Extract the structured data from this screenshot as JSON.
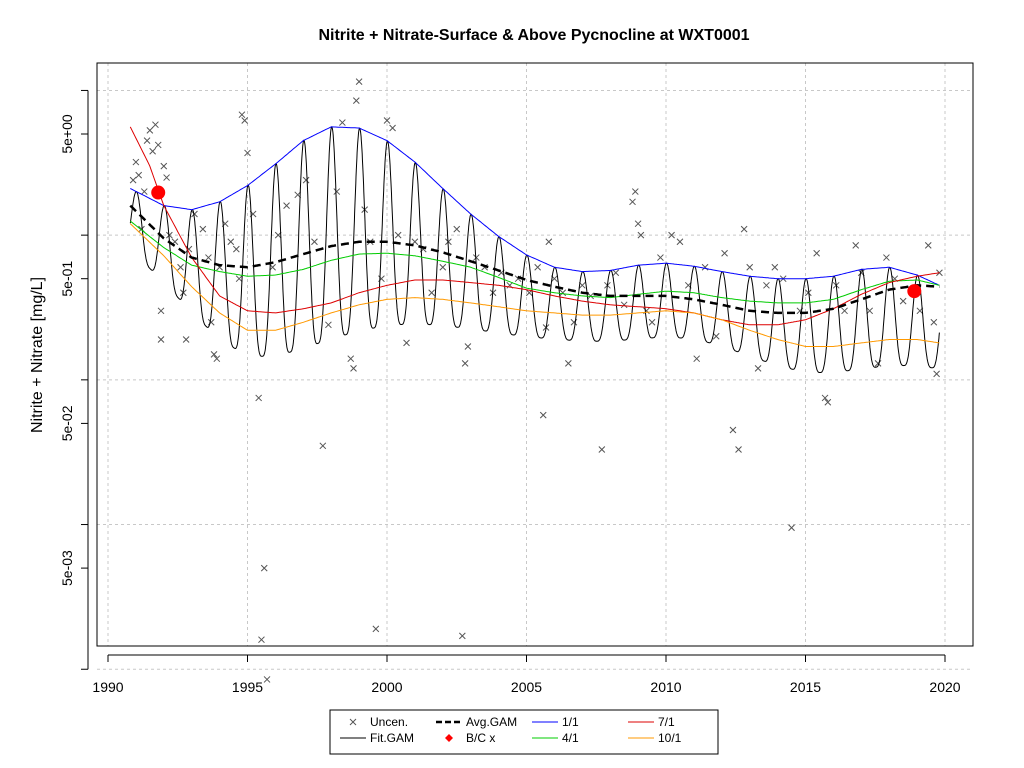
{
  "chart_data": {
    "type": "scatter",
    "title": "Nitrite + Nitrate-Surface & Above Pycnocline at WXT0001",
    "xlabel": "",
    "ylabel": "Nitrite + Nitrate [mg/L]",
    "y_scale": "log",
    "xlim": [
      1990,
      2020
    ],
    "ylim": [
      0.0005,
      20
    ],
    "x_ticks": [
      "1990",
      "1995",
      "2000",
      "2005",
      "2010",
      "2015",
      "2020"
    ],
    "y_ticks": [
      "5e-03",
      "5e-02",
      "5e-01",
      "5e+00"
    ],
    "grid": true,
    "legend_position": "bottom-center",
    "legend": [
      {
        "label": "Uncen.",
        "symbol": "x",
        "color": "#555555"
      },
      {
        "label": "Fit.GAM",
        "symbol": "line",
        "color": "#000000"
      },
      {
        "label": "Avg.GAM",
        "symbol": "dashed-line",
        "color": "#000000"
      },
      {
        "label": "B/C x",
        "symbol": "diamond",
        "color": "#ff0000"
      },
      {
        "label": "1/1",
        "symbol": "line",
        "color": "#0000ff"
      },
      {
        "label": "4/1",
        "symbol": "line",
        "color": "#00cc00"
      },
      {
        "label": "7/1",
        "symbol": "line",
        "color": "#dd0000"
      },
      {
        "label": "10/1",
        "symbol": "line",
        "color": "#ff9900"
      }
    ],
    "baseline_compare_points": [
      {
        "x": 1991.8,
        "y": 1.97
      },
      {
        "x": 2018.9,
        "y": 0.41
      }
    ],
    "seasonal_curves": [
      {
        "name": "1/1",
        "color": "#0000ff",
        "x": [
          1990.8,
          1992,
          1993,
          1994,
          1995,
          1996,
          1997,
          1998,
          1999,
          2000,
          2001,
          2002,
          2003,
          2004,
          2005,
          2006,
          2007,
          2008,
          2009,
          2010,
          2011,
          2012,
          2013,
          2014,
          2015,
          2016,
          2017,
          2018,
          2019,
          2019.8
        ],
        "y": [
          2.1,
          1.6,
          1.5,
          1.7,
          2.2,
          3.1,
          4.5,
          5.6,
          5.5,
          4.5,
          3.2,
          2.1,
          1.4,
          0.98,
          0.73,
          0.6,
          0.56,
          0.57,
          0.62,
          0.64,
          0.61,
          0.56,
          0.52,
          0.5,
          0.5,
          0.52,
          0.58,
          0.6,
          0.53,
          0.45
        ]
      },
      {
        "name": "4/1",
        "color": "#00cc00",
        "x": [
          1990.8,
          1992,
          1993,
          1994,
          1995,
          1996,
          1997,
          1998,
          1999,
          2000,
          2001,
          2002,
          2003,
          2004,
          2005,
          2006,
          2007,
          2008,
          2009,
          2010,
          2011,
          2012,
          2013,
          2014,
          2015,
          2016,
          2017,
          2018,
          2019,
          2019.8
        ],
        "y": [
          1.25,
          0.82,
          0.62,
          0.56,
          0.52,
          0.53,
          0.58,
          0.67,
          0.74,
          0.75,
          0.72,
          0.66,
          0.6,
          0.51,
          0.43,
          0.4,
          0.38,
          0.37,
          0.39,
          0.41,
          0.4,
          0.37,
          0.35,
          0.34,
          0.34,
          0.36,
          0.42,
          0.48,
          0.49,
          0.45
        ]
      },
      {
        "name": "7/1",
        "color": "#dd0000",
        "x": [
          1990.8,
          1991.5,
          1992,
          1993,
          1994,
          1995,
          1996,
          1997,
          1998,
          1999,
          2000,
          2001,
          2002,
          2003,
          2004,
          2005,
          2006,
          2007,
          2008,
          2009,
          2010,
          2011,
          2012,
          2013,
          2014,
          2015,
          2016,
          2017,
          2018,
          2019,
          2019.8
        ],
        "y": [
          5.6,
          3.0,
          1.6,
          0.7,
          0.38,
          0.3,
          0.29,
          0.31,
          0.34,
          0.4,
          0.45,
          0.49,
          0.49,
          0.47,
          0.45,
          0.42,
          0.38,
          0.35,
          0.33,
          0.32,
          0.31,
          0.29,
          0.26,
          0.24,
          0.24,
          0.26,
          0.31,
          0.39,
          0.47,
          0.52,
          0.55
        ]
      },
      {
        "name": "10/1",
        "color": "#ff9900",
        "x": [
          1990.8,
          1992,
          1993,
          1994,
          1995,
          1996,
          1997,
          1998,
          1999,
          2000,
          2001,
          2002,
          2003,
          2004,
          2005,
          2006,
          2007,
          2008,
          2009,
          2010,
          2011,
          2012,
          2013,
          2014,
          2015,
          2016,
          2017,
          2018,
          2019,
          2019.8
        ],
        "y": [
          1.2,
          0.72,
          0.44,
          0.29,
          0.22,
          0.22,
          0.25,
          0.29,
          0.33,
          0.36,
          0.37,
          0.36,
          0.34,
          0.32,
          0.3,
          0.29,
          0.28,
          0.28,
          0.29,
          0.3,
          0.29,
          0.26,
          0.22,
          0.19,
          0.17,
          0.17,
          0.18,
          0.19,
          0.19,
          0.18
        ]
      }
    ],
    "avg_gam": {
      "name": "Avg.GAM",
      "color": "#000000",
      "x": [
        1990.8,
        1992,
        1993,
        1994,
        1995,
        1996,
        1997,
        1998,
        1999,
        2000,
        2001,
        2002,
        2003,
        2004,
        2005,
        2006,
        2007,
        2008,
        2009,
        2010,
        2011,
        2012,
        2013,
        2014,
        2015,
        2016,
        2017,
        2018,
        2019,
        2019.8
      ],
      "y": [
        1.6,
        0.95,
        0.7,
        0.62,
        0.6,
        0.65,
        0.74,
        0.84,
        0.9,
        0.9,
        0.85,
        0.76,
        0.66,
        0.57,
        0.49,
        0.44,
        0.4,
        0.38,
        0.38,
        0.38,
        0.36,
        0.33,
        0.3,
        0.29,
        0.29,
        0.31,
        0.36,
        0.42,
        0.45,
        0.44
      ]
    },
    "fit_gam_seasonal": {
      "name": "Fit.GAM",
      "color": "#000000",
      "start_year": 1990.8,
      "end_year": 2019.8,
      "description_amplitude_log10": 0.52
    },
    "observations": {
      "name": "Uncen.",
      "color": "#555555",
      "points": [
        [
          1990.9,
          2.4
        ],
        [
          1991.0,
          3.2
        ],
        [
          1991.1,
          2.6
        ],
        [
          1991.2,
          1.1
        ],
        [
          1991.3,
          2.0
        ],
        [
          1991.4,
          4.5
        ],
        [
          1991.5,
          5.3
        ],
        [
          1991.6,
          3.8
        ],
        [
          1991.7,
          5.8
        ],
        [
          1991.8,
          4.2
        ],
        [
          1991.9,
          0.19
        ],
        [
          1991.9,
          0.3
        ],
        [
          1992.0,
          3.0
        ],
        [
          1992.1,
          2.5
        ],
        [
          1992.2,
          1.0
        ],
        [
          1992.4,
          0.9
        ],
        [
          1992.6,
          0.6
        ],
        [
          1992.7,
          0.4
        ],
        [
          1992.8,
          0.19
        ],
        [
          1992.9,
          0.8
        ],
        [
          1993.1,
          1.4
        ],
        [
          1993.4,
          1.1
        ],
        [
          1993.6,
          0.7
        ],
        [
          1993.7,
          0.25
        ],
        [
          1993.8,
          0.15
        ],
        [
          1993.9,
          0.14
        ],
        [
          1994.0,
          0.6
        ],
        [
          1994.2,
          1.2
        ],
        [
          1994.4,
          0.9
        ],
        [
          1994.6,
          0.8
        ],
        [
          1994.7,
          0.5
        ],
        [
          1994.8,
          6.8
        ],
        [
          1994.9,
          6.2
        ],
        [
          1995.0,
          3.7
        ],
        [
          1995.2,
          1.4
        ],
        [
          1995.4,
          0.075
        ],
        [
          1995.5,
          0.0016
        ],
        [
          1995.6,
          0.005
        ],
        [
          1995.7,
          0.00085
        ],
        [
          1995.9,
          0.6
        ],
        [
          1996.1,
          1.0
        ],
        [
          1996.4,
          1.6
        ],
        [
          1996.8,
          1.9
        ],
        [
          1997.1,
          2.4
        ],
        [
          1997.4,
          0.9
        ],
        [
          1997.7,
          0.035
        ],
        [
          1997.9,
          0.24
        ],
        [
          1998.2,
          2.0
        ],
        [
          1998.4,
          6.0
        ],
        [
          1998.7,
          0.14
        ],
        [
          1998.8,
          0.12
        ],
        [
          1998.9,
          8.5
        ],
        [
          1999.0,
          11.5
        ],
        [
          1999.2,
          1.5
        ],
        [
          1999.4,
          0.9
        ],
        [
          1999.6,
          0.0019
        ],
        [
          1999.8,
          0.5
        ],
        [
          2000.0,
          6.2
        ],
        [
          2000.2,
          5.5
        ],
        [
          2000.4,
          1.0
        ],
        [
          2000.7,
          0.18
        ],
        [
          2001.0,
          0.9
        ],
        [
          2001.3,
          0.8
        ],
        [
          2001.6,
          0.4
        ],
        [
          2002.0,
          0.6
        ],
        [
          2002.2,
          0.9
        ],
        [
          2002.5,
          1.1
        ],
        [
          2002.7,
          0.0017
        ],
        [
          2002.8,
          0.13
        ],
        [
          2002.9,
          0.17
        ],
        [
          2003.2,
          0.7
        ],
        [
          2003.5,
          0.6
        ],
        [
          2003.8,
          0.4
        ],
        [
          2004.1,
          0.55
        ],
        [
          2004.4,
          0.45
        ],
        [
          2004.7,
          0.5
        ],
        [
          2005.1,
          0.4
        ],
        [
          2005.4,
          0.6
        ],
        [
          2005.6,
          0.057
        ],
        [
          2005.7,
          0.23
        ],
        [
          2005.8,
          0.9
        ],
        [
          2006.0,
          0.5
        ],
        [
          2006.3,
          0.4
        ],
        [
          2006.5,
          0.13
        ],
        [
          2006.7,
          0.25
        ],
        [
          2007.0,
          0.45
        ],
        [
          2007.3,
          0.38
        ],
        [
          2007.7,
          0.033
        ],
        [
          2007.9,
          0.45
        ],
        [
          2008.2,
          0.55
        ],
        [
          2008.5,
          0.33
        ],
        [
          2008.8,
          1.7
        ],
        [
          2008.9,
          2.0
        ],
        [
          2009.0,
          1.2
        ],
        [
          2009.1,
          1.0
        ],
        [
          2009.3,
          0.3
        ],
        [
          2009.5,
          0.25
        ],
        [
          2009.8,
          0.7
        ],
        [
          2010.2,
          1.0
        ],
        [
          2010.5,
          0.9
        ],
        [
          2010.8,
          0.45
        ],
        [
          2011.1,
          0.14
        ],
        [
          2011.4,
          0.6
        ],
        [
          2011.8,
          0.2
        ],
        [
          2012.1,
          0.75
        ],
        [
          2012.4,
          0.045
        ],
        [
          2012.6,
          0.033
        ],
        [
          2012.8,
          1.1
        ],
        [
          2013.0,
          0.6
        ],
        [
          2013.3,
          0.12
        ],
        [
          2013.6,
          0.45
        ],
        [
          2013.9,
          0.6
        ],
        [
          2014.2,
          0.5
        ],
        [
          2014.5,
          0.0095
        ],
        [
          2014.8,
          0.3
        ],
        [
          2015.1,
          0.4
        ],
        [
          2015.4,
          0.75
        ],
        [
          2015.7,
          0.075
        ],
        [
          2015.8,
          0.07
        ],
        [
          2016.1,
          0.45
        ],
        [
          2016.4,
          0.3
        ],
        [
          2016.8,
          0.85
        ],
        [
          2017.0,
          0.55
        ],
        [
          2017.3,
          0.3
        ],
        [
          2017.6,
          0.13
        ],
        [
          2017.9,
          0.7
        ],
        [
          2018.2,
          0.5
        ],
        [
          2018.5,
          0.35
        ],
        [
          2018.8,
          0.42
        ],
        [
          2019.1,
          0.3
        ],
        [
          2019.4,
          0.85
        ],
        [
          2019.6,
          0.25
        ],
        [
          2019.7,
          0.11
        ],
        [
          2019.8,
          0.55
        ]
      ]
    }
  }
}
